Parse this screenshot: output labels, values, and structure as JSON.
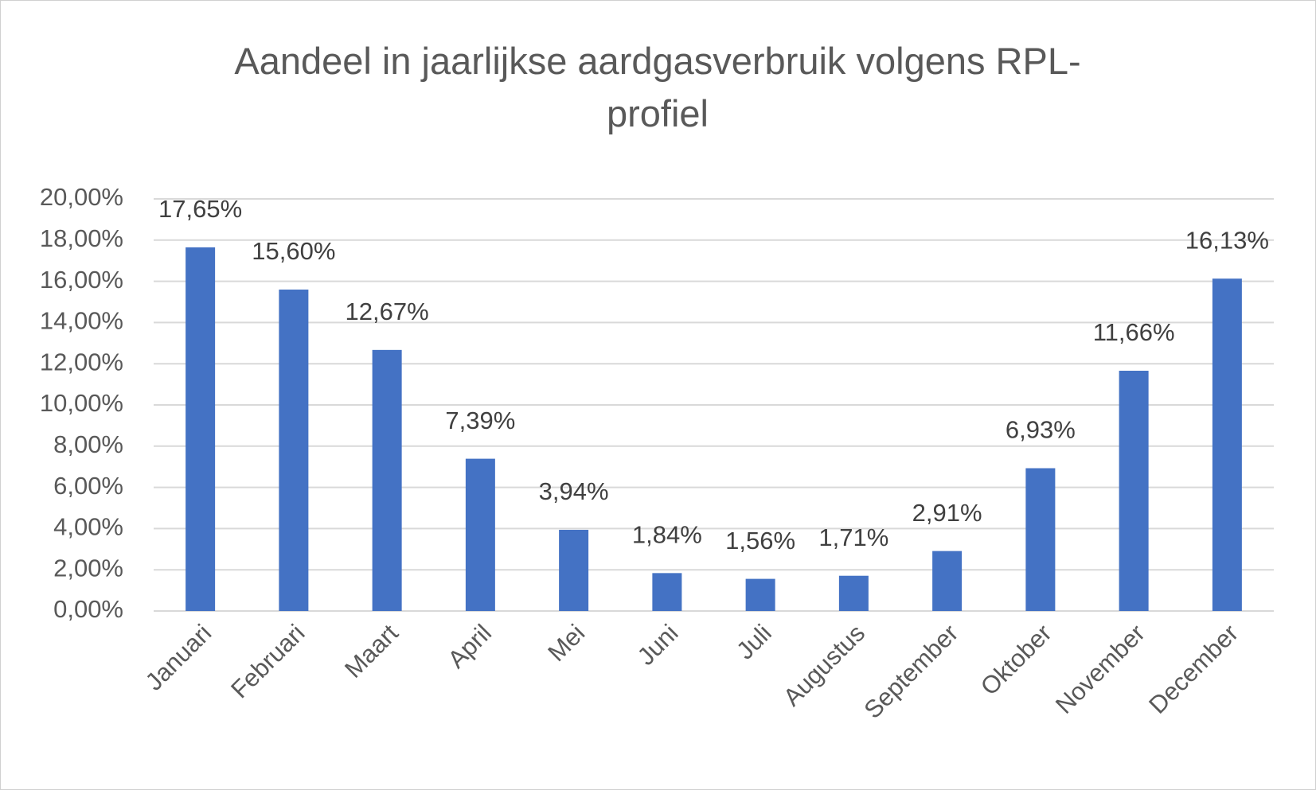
{
  "chart_data": {
    "type": "bar",
    "title": "Aandeel in jaarlijkse aardgasverbruik volgens RPL-profiel",
    "categories": [
      "Januari",
      "Februari",
      "Maart",
      "April",
      "Mei",
      "Juni",
      "Juli",
      "Augustus",
      "September",
      "Oktober",
      "November",
      "December"
    ],
    "values": [
      17.65,
      15.6,
      12.67,
      7.39,
      3.94,
      1.84,
      1.56,
      1.71,
      2.91,
      6.93,
      11.66,
      16.13
    ],
    "value_labels": [
      "17,65%",
      "15,60%",
      "12,67%",
      "7,39%",
      "3,94%",
      "1,84%",
      "1,56%",
      "1,71%",
      "2,91%",
      "6,93%",
      "11,66%",
      "16,13%"
    ],
    "color": "#4472c4",
    "ylim": [
      0,
      20
    ],
    "yticks": [
      {
        "value": 0,
        "label": "0,00%"
      },
      {
        "value": 2,
        "label": "2,00%"
      },
      {
        "value": 4,
        "label": "4,00%"
      },
      {
        "value": 6,
        "label": "6,00%"
      },
      {
        "value": 8,
        "label": "8,00%"
      },
      {
        "value": 10,
        "label": "10,00%"
      },
      {
        "value": 12,
        "label": "12,00%"
      },
      {
        "value": 14,
        "label": "14,00%"
      },
      {
        "value": 16,
        "label": "16,00%"
      },
      {
        "value": 18,
        "label": "18,00%"
      },
      {
        "value": 20,
        "label": "20,00%"
      }
    ],
    "grid": true
  }
}
